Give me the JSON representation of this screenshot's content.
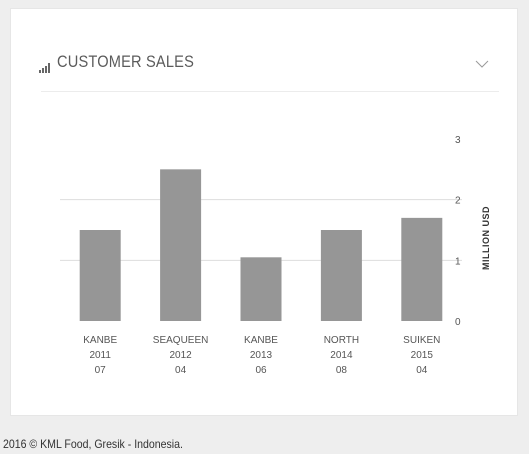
{
  "widget": {
    "title": "CUSTOMER SALES",
    "collapse_icon": "chevron-down-icon",
    "title_icon": "signal-bars-icon"
  },
  "footer": {
    "text": "2016 © KML Food, Gresik - Indonesia."
  },
  "colors": {
    "bar": "#969696",
    "grid": "#dddddd",
    "axis_text": "#555555"
  },
  "chart_data": {
    "type": "bar",
    "categories": [
      [
        "KANBE",
        "2011",
        "07"
      ],
      [
        "SEAQUEEN",
        "2012",
        "04"
      ],
      [
        "KANBE",
        "2013",
        "06"
      ],
      [
        "NORTH",
        "2014",
        "08"
      ],
      [
        "SUIKEN",
        "2015",
        "04"
      ]
    ],
    "values": [
      1.5,
      2.5,
      1.05,
      1.5,
      1.7
    ],
    "ylabel": "MILLION USD",
    "ylim": [
      0,
      3
    ],
    "yticks": [
      0,
      1,
      2,
      3
    ],
    "y_axis_side": "right",
    "grid": true
  }
}
